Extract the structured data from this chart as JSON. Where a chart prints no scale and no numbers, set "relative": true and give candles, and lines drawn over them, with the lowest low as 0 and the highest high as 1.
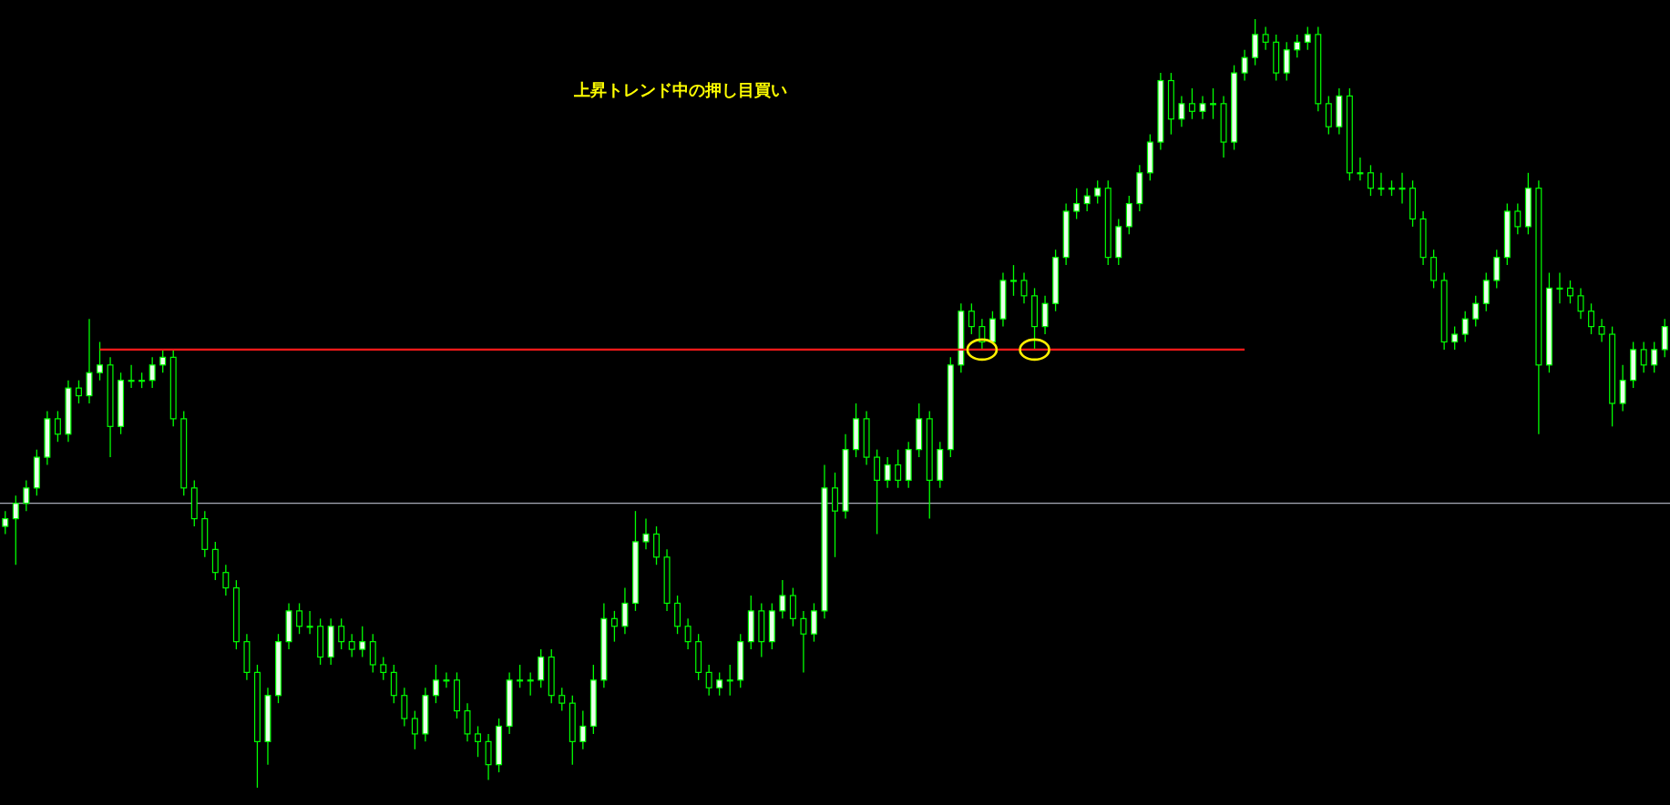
{
  "chart_data": {
    "type": "candlestick",
    "title": "上昇トレンド中の押し目買い",
    "relative": true,
    "color": "#00ff00",
    "categories": [
      null,
      null,
      null,
      null,
      null,
      null,
      null,
      null,
      null,
      null,
      null,
      null,
      null,
      null,
      null,
      null,
      null,
      null,
      null,
      null,
      null,
      null,
      null,
      null,
      null,
      null,
      null,
      null,
      null,
      null,
      null,
      null,
      null,
      null,
      null,
      null,
      null,
      null,
      null,
      null,
      null,
      null,
      null,
      null,
      null,
      null,
      null,
      null,
      null,
      null,
      null,
      null,
      null,
      null,
      null,
      null,
      null,
      null,
      null,
      null,
      null,
      null,
      null,
      null,
      null,
      null,
      null,
      null,
      null,
      null,
      null,
      null,
      null,
      null,
      null,
      null,
      null,
      null,
      null,
      null,
      null,
      null,
      null,
      null,
      null,
      null,
      null,
      null,
      null,
      null,
      null,
      null,
      null,
      null,
      null,
      null,
      null,
      null,
      null,
      null,
      null,
      null,
      null,
      null,
      null,
      null,
      null,
      null,
      null,
      null,
      null,
      null,
      null,
      null,
      null,
      null,
      null,
      null,
      null,
      null,
      null,
      null,
      null,
      null,
      null,
      null,
      null,
      null,
      null,
      null,
      null,
      null,
      null,
      null,
      null,
      null,
      null,
      null,
      null,
      null,
      null,
      null,
      null,
      null,
      null,
      null,
      null,
      null,
      null,
      null,
      null,
      null,
      null,
      null,
      null,
      null,
      null,
      null,
      null
    ],
    "ohlc": [
      [
        0.34,
        0.36,
        0.33,
        0.35
      ],
      [
        0.35,
        0.38,
        0.29,
        0.37
      ],
      [
        0.37,
        0.4,
        0.36,
        0.39
      ],
      [
        0.39,
        0.44,
        0.38,
        0.43
      ],
      [
        0.43,
        0.49,
        0.42,
        0.48
      ],
      [
        0.48,
        0.49,
        0.45,
        0.46
      ],
      [
        0.46,
        0.53,
        0.45,
        0.52
      ],
      [
        0.52,
        0.53,
        0.5,
        0.51
      ],
      [
        0.51,
        0.61,
        0.5,
        0.54
      ],
      [
        0.54,
        0.58,
        0.53,
        0.55
      ],
      [
        0.55,
        0.56,
        0.43,
        0.47
      ],
      [
        0.47,
        0.54,
        0.46,
        0.53
      ],
      [
        0.53,
        0.55,
        0.52,
        0.53
      ],
      [
        0.53,
        0.54,
        0.52,
        0.53
      ],
      [
        0.53,
        0.56,
        0.52,
        0.55
      ],
      [
        0.55,
        0.57,
        0.54,
        0.56
      ],
      [
        0.56,
        0.57,
        0.47,
        0.48
      ],
      [
        0.48,
        0.49,
        0.38,
        0.39
      ],
      [
        0.39,
        0.4,
        0.34,
        0.35
      ],
      [
        0.35,
        0.36,
        0.3,
        0.31
      ],
      [
        0.31,
        0.32,
        0.27,
        0.28
      ],
      [
        0.28,
        0.29,
        0.25,
        0.26
      ],
      [
        0.26,
        0.27,
        0.18,
        0.19
      ],
      [
        0.19,
        0.2,
        0.14,
        0.15
      ],
      [
        0.15,
        0.16,
        0,
        0.06
      ],
      [
        0.06,
        0.13,
        0.03,
        0.12
      ],
      [
        0.12,
        0.2,
        0.11,
        0.19
      ],
      [
        0.19,
        0.24,
        0.18,
        0.23
      ],
      [
        0.23,
        0.24,
        0.2,
        0.21
      ],
      [
        0.21,
        0.23,
        0.2,
        0.21
      ],
      [
        0.21,
        0.22,
        0.16,
        0.17
      ],
      [
        0.17,
        0.22,
        0.16,
        0.21
      ],
      [
        0.21,
        0.22,
        0.18,
        0.19
      ],
      [
        0.19,
        0.2,
        0.17,
        0.18
      ],
      [
        0.18,
        0.21,
        0.17,
        0.19
      ],
      [
        0.19,
        0.2,
        0.15,
        0.16
      ],
      [
        0.16,
        0.17,
        0.14,
        0.15
      ],
      [
        0.15,
        0.16,
        0.11,
        0.12
      ],
      [
        0.12,
        0.13,
        0.08,
        0.09
      ],
      [
        0.09,
        0.1,
        0.05,
        0.07
      ],
      [
        0.07,
        0.13,
        0.06,
        0.12
      ],
      [
        0.12,
        0.16,
        0.11,
        0.14
      ],
      [
        0.14,
        0.15,
        0.13,
        0.14
      ],
      [
        0.14,
        0.15,
        0.09,
        0.1
      ],
      [
        0.1,
        0.11,
        0.06,
        0.07
      ],
      [
        0.07,
        0.08,
        0.04,
        0.06
      ],
      [
        0.06,
        0.07,
        0.01,
        0.03
      ],
      [
        0.03,
        0.09,
        0.02,
        0.08
      ],
      [
        0.08,
        0.15,
        0.07,
        0.14
      ],
      [
        0.14,
        0.16,
        0.13,
        0.14
      ],
      [
        0.14,
        0.15,
        0.12,
        0.14
      ],
      [
        0.14,
        0.18,
        0.13,
        0.17
      ],
      [
        0.17,
        0.18,
        0.11,
        0.12
      ],
      [
        0.12,
        0.13,
        0.1,
        0.11
      ],
      [
        0.11,
        0.12,
        0.03,
        0.06
      ],
      [
        0.06,
        0.1,
        0.05,
        0.08
      ],
      [
        0.08,
        0.16,
        0.07,
        0.14
      ],
      [
        0.14,
        0.24,
        0.13,
        0.22
      ],
      [
        0.22,
        0.23,
        0.19,
        0.21
      ],
      [
        0.21,
        0.26,
        0.2,
        0.24
      ],
      [
        0.24,
        0.36,
        0.23,
        0.32
      ],
      [
        0.32,
        0.35,
        0.31,
        0.33
      ],
      [
        0.33,
        0.34,
        0.29,
        0.3
      ],
      [
        0.3,
        0.31,
        0.23,
        0.24
      ],
      [
        0.24,
        0.25,
        0.2,
        0.21
      ],
      [
        0.21,
        0.22,
        0.18,
        0.19
      ],
      [
        0.19,
        0.2,
        0.14,
        0.15
      ],
      [
        0.15,
        0.16,
        0.12,
        0.13
      ],
      [
        0.13,
        0.15,
        0.12,
        0.14
      ],
      [
        0.14,
        0.16,
        0.12,
        0.14
      ],
      [
        0.14,
        0.2,
        0.13,
        0.19
      ],
      [
        0.19,
        0.25,
        0.18,
        0.23
      ],
      [
        0.23,
        0.24,
        0.17,
        0.19
      ],
      [
        0.19,
        0.24,
        0.18,
        0.23
      ],
      [
        0.23,
        0.27,
        0.22,
        0.25
      ],
      [
        0.25,
        0.26,
        0.21,
        0.22
      ],
      [
        0.22,
        0.23,
        0.15,
        0.2
      ],
      [
        0.2,
        0.24,
        0.19,
        0.23
      ],
      [
        0.23,
        0.42,
        0.22,
        0.39
      ],
      [
        0.39,
        0.41,
        0.3,
        0.36
      ],
      [
        0.36,
        0.46,
        0.35,
        0.44
      ],
      [
        0.44,
        0.5,
        0.43,
        0.48
      ],
      [
        0.48,
        0.49,
        0.42,
        0.43
      ],
      [
        0.43,
        0.44,
        0.33,
        0.4
      ],
      [
        0.4,
        0.43,
        0.39,
        0.42
      ],
      [
        0.42,
        0.44,
        0.39,
        0.4
      ],
      [
        0.4,
        0.45,
        0.39,
        0.44
      ],
      [
        0.44,
        0.5,
        0.43,
        0.48
      ],
      [
        0.48,
        0.49,
        0.35,
        0.4
      ],
      [
        0.4,
        0.45,
        0.39,
        0.44
      ],
      [
        0.44,
        0.56,
        0.43,
        0.55
      ],
      [
        0.55,
        0.63,
        0.54,
        0.62
      ],
      [
        0.62,
        0.63,
        0.59,
        0.6
      ],
      [
        0.6,
        0.61,
        0.57,
        0.58
      ],
      [
        0.58,
        0.62,
        0.58,
        0.61
      ],
      [
        0.61,
        0.67,
        0.6,
        0.66
      ],
      [
        0.66,
        0.68,
        0.64,
        0.66
      ],
      [
        0.66,
        0.67,
        0.63,
        0.64
      ],
      [
        0.64,
        0.65,
        0.57,
        0.6
      ],
      [
        0.6,
        0.64,
        0.59,
        0.63
      ],
      [
        0.63,
        0.7,
        0.62,
        0.69
      ],
      [
        0.69,
        0.76,
        0.68,
        0.75
      ],
      [
        0.75,
        0.78,
        0.74,
        0.76
      ],
      [
        0.76,
        0.78,
        0.75,
        0.77
      ],
      [
        0.77,
        0.79,
        0.76,
        0.78
      ],
      [
        0.78,
        0.79,
        0.68,
        0.69
      ],
      [
        0.69,
        0.74,
        0.68,
        0.73
      ],
      [
        0.73,
        0.77,
        0.72,
        0.76
      ],
      [
        0.76,
        0.81,
        0.75,
        0.8
      ],
      [
        0.8,
        0.85,
        0.79,
        0.84
      ],
      [
        0.84,
        0.93,
        0.83,
        0.92
      ],
      [
        0.92,
        0.93,
        0.85,
        0.87
      ],
      [
        0.87,
        0.9,
        0.86,
        0.89
      ],
      [
        0.89,
        0.91,
        0.87,
        0.88
      ],
      [
        0.88,
        0.9,
        0.87,
        0.89
      ],
      [
        0.89,
        0.91,
        0.87,
        0.89
      ],
      [
        0.89,
        0.9,
        0.82,
        0.84
      ],
      [
        0.84,
        0.94,
        0.83,
        0.93
      ],
      [
        0.93,
        0.96,
        0.92,
        0.95
      ],
      [
        0.95,
        1,
        0.94,
        0.98
      ],
      [
        0.98,
        0.99,
        0.96,
        0.97
      ],
      [
        0.97,
        0.98,
        0.92,
        0.93
      ],
      [
        0.93,
        0.97,
        0.92,
        0.96
      ],
      [
        0.96,
        0.98,
        0.95,
        0.97
      ],
      [
        0.97,
        0.99,
        0.96,
        0.98
      ],
      [
        0.98,
        0.99,
        0.88,
        0.89
      ],
      [
        0.89,
        0.9,
        0.85,
        0.86
      ],
      [
        0.86,
        0.91,
        0.85,
        0.9
      ],
      [
        0.9,
        0.91,
        0.79,
        0.8
      ],
      [
        0.8,
        0.82,
        0.79,
        0.8
      ],
      [
        0.8,
        0.81,
        0.77,
        0.78
      ],
      [
        0.78,
        0.8,
        0.77,
        0.78
      ],
      [
        0.78,
        0.79,
        0.77,
        0.78
      ],
      [
        0.78,
        0.8,
        0.76,
        0.78
      ],
      [
        0.78,
        0.79,
        0.73,
        0.74
      ],
      [
        0.74,
        0.75,
        0.68,
        0.69
      ],
      [
        0.69,
        0.7,
        0.65,
        0.66
      ],
      [
        0.66,
        0.67,
        0.57,
        0.58
      ],
      [
        0.58,
        0.6,
        0.57,
        0.59
      ],
      [
        0.59,
        0.62,
        0.58,
        0.61
      ],
      [
        0.61,
        0.64,
        0.6,
        0.63
      ],
      [
        0.63,
        0.67,
        0.62,
        0.66
      ],
      [
        0.66,
        0.7,
        0.65,
        0.69
      ],
      [
        0.69,
        0.76,
        0.68,
        0.75
      ],
      [
        0.75,
        0.76,
        0.72,
        0.73
      ],
      [
        0.73,
        0.8,
        0.72,
        0.78
      ],
      [
        0.78,
        0.79,
        0.46,
        0.55
      ],
      [
        0.55,
        0.67,
        0.54,
        0.65
      ],
      [
        0.65,
        0.67,
        0.63,
        0.65
      ],
      [
        0.65,
        0.66,
        0.63,
        0.64
      ],
      [
        0.64,
        0.65,
        0.61,
        0.62
      ],
      [
        0.62,
        0.63,
        0.59,
        0.6
      ],
      [
        0.6,
        0.61,
        0.58,
        0.59
      ],
      [
        0.59,
        0.6,
        0.47,
        0.5
      ],
      [
        0.5,
        0.55,
        0.49,
        0.53
      ],
      [
        0.53,
        0.58,
        0.52,
        0.57
      ],
      [
        0.57,
        0.58,
        0.54,
        0.55
      ],
      [
        0.55,
        0.58,
        0.54,
        0.57
      ],
      [
        0.57,
        0.61,
        0.56,
        0.6
      ]
    ],
    "ref_lines": [
      {
        "axis": "y",
        "value": 0.37,
        "color": "#a8aab8"
      }
    ],
    "series": [
      {
        "type": "line",
        "color": "#ff1a1a",
        "values": [
          null,
          null,
          null,
          null,
          null,
          null,
          null,
          null,
          null,
          0.57,
          0.57,
          0.57,
          0.57,
          0.57,
          0.57,
          0.57,
          0.57,
          0.57,
          0.57,
          0.57,
          0.57,
          0.57,
          0.57,
          0.57,
          0.57,
          0.57,
          0.57,
          0.57,
          0.57,
          0.57,
          0.57,
          0.57,
          0.57,
          0.57,
          0.57,
          0.57,
          0.57,
          0.57,
          0.57,
          0.57,
          0.57,
          0.57,
          0.57,
          0.57,
          0.57,
          0.57,
          0.57,
          0.57,
          0.57,
          0.57,
          0.57,
          0.57,
          0.57,
          0.57,
          0.57,
          0.57,
          0.57,
          0.57,
          0.57,
          0.57,
          0.57,
          0.57,
          0.57,
          0.57,
          0.57,
          0.57,
          0.57,
          0.57,
          0.57,
          0.57,
          0.57,
          0.57,
          0.57,
          0.57,
          0.57,
          0.57,
          0.57,
          0.57,
          0.57,
          0.57,
          0.57,
          0.57,
          0.57,
          0.57,
          0.57,
          0.57,
          0.57,
          0.57,
          0.57,
          0.57,
          0.57,
          0.57,
          0.57,
          0.57,
          0.57,
          0.57,
          0.57,
          0.57,
          0.57,
          0.57,
          0.57,
          0.57,
          0.57,
          0.57,
          0.57,
          0.57,
          0.57,
          0.57,
          0.57,
          0.57,
          0.57,
          0.57,
          0.57,
          0.57,
          0.57,
          0.57,
          0.57,
          0.57,
          0.57,
          null,
          null,
          null,
          null,
          null,
          null,
          null,
          null,
          null,
          null,
          null,
          null,
          null,
          null,
          null,
          null,
          null,
          null,
          null,
          null,
          null,
          null,
          null,
          null,
          null,
          null,
          null,
          null,
          null,
          null,
          null,
          null,
          null,
          null,
          null,
          null,
          null,
          null,
          null,
          null
        ]
      }
    ]
  }
}
